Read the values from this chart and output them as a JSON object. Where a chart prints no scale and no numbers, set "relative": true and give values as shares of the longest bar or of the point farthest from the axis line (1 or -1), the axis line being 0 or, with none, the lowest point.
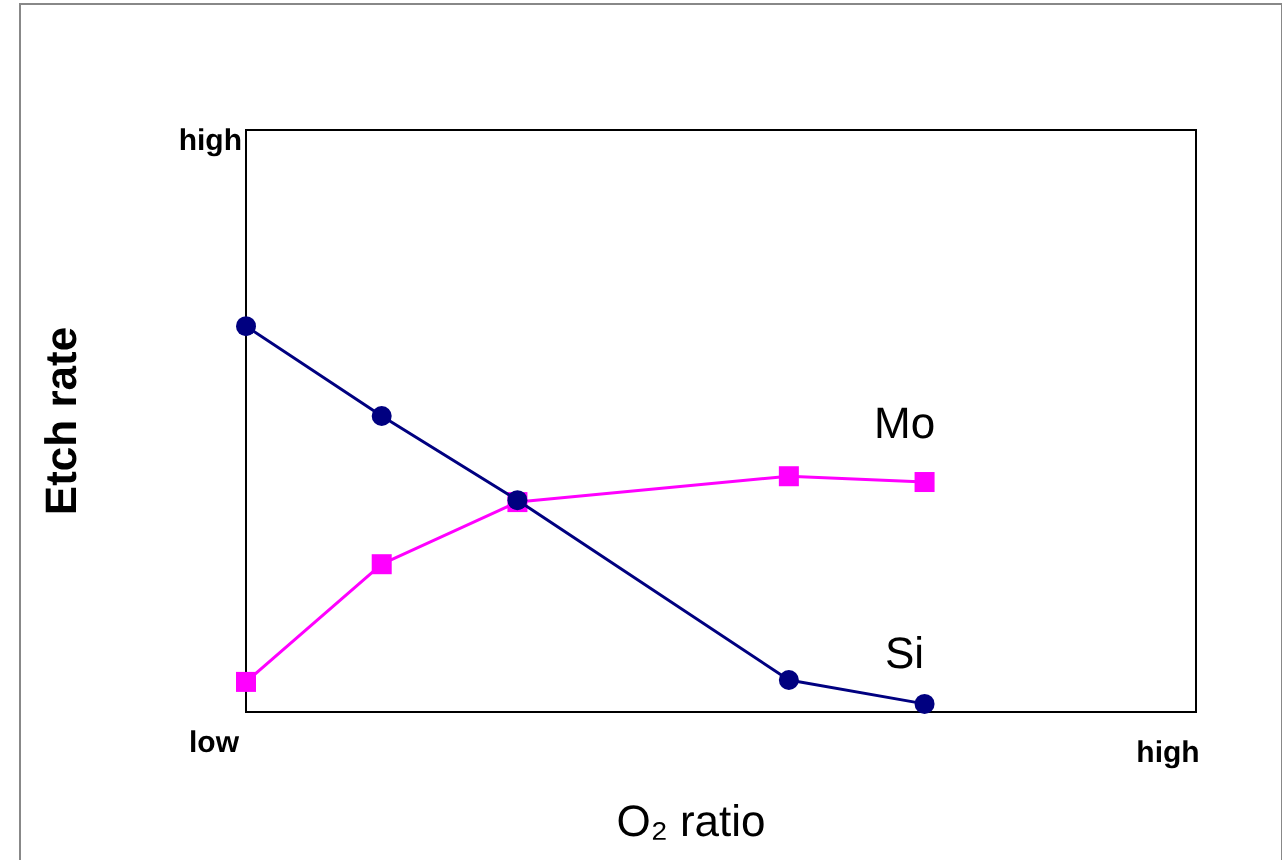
{
  "chart_data": {
    "type": "line",
    "relative": true,
    "xlabel": "O₂ ratio",
    "ylabel": "Etch rate",
    "categories": [
      null,
      null,
      null,
      null,
      null,
      null,
      null,
      null
    ],
    "annotations": [
      "high",
      "low",
      "high"
    ],
    "series": [
      {
        "name": "Si",
        "color": "#000080",
        "marker": "circle",
        "values": [
          1,
          0.767,
          0.549,
          null,
          0.083,
          0.021,
          null,
          null
        ]
      },
      {
        "name": "Mo",
        "color": "#ff00ff",
        "marker": "square",
        "values": [
          0.078,
          0.383,
          0.544,
          null,
          0.611,
          0.596,
          null,
          null
        ]
      }
    ]
  }
}
